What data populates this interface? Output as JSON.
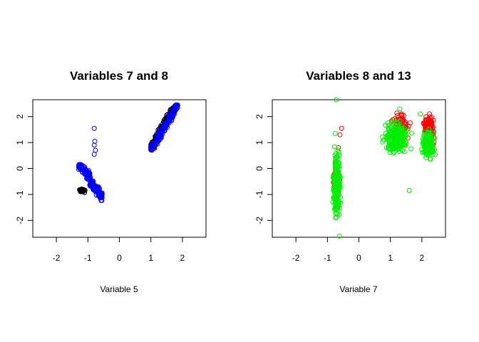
{
  "chart_data": [
    {
      "type": "scatter",
      "title": "Variables 7 and 8",
      "xlabel": "Variable 5",
      "ylabel": "",
      "xlim": [
        -2.75,
        2.75
      ],
      "ylim": [
        -2.65,
        2.65
      ],
      "xticks": [
        "-2",
        "-1",
        "0",
        "1",
        "2"
      ],
      "yticks": [
        "-2",
        "-1",
        "0",
        "1",
        "2"
      ],
      "grid": false,
      "legend": "none",
      "marker": "open-circle",
      "series": [
        {
          "color": "#000000",
          "clusters": [
            {
              "x_range": [
                1.0,
                1.75
              ],
              "y_range": [
                0.8,
                2.35
              ],
              "n": 200,
              "shape": "diag"
            },
            {
              "x_range": [
                -1.3,
                -1.05
              ],
              "y_range": [
                -0.95,
                -0.75
              ],
              "n": 30,
              "shape": "box"
            }
          ],
          "points": []
        },
        {
          "color": "#0000ff",
          "clusters": [
            {
              "x_range": [
                -1.3,
                -0.55
              ],
              "y_range": [
                -1.3,
                0.15
              ],
              "n": 220,
              "shape": "diag-neg"
            },
            {
              "x_range": [
                1.0,
                1.85
              ],
              "y_range": [
                0.7,
                2.45
              ],
              "n": 170,
              "shape": "diag"
            }
          ],
          "points": [
            [
              -0.8,
              1.55
            ],
            [
              -0.78,
              1.05
            ],
            [
              -0.8,
              0.9
            ],
            [
              -0.76,
              0.7
            ],
            [
              -0.8,
              0.55
            ],
            [
              1.8,
              2.45
            ]
          ]
        }
      ]
    },
    {
      "type": "scatter",
      "title": "Variables 8 and 13",
      "xlabel": "Variable 7",
      "ylabel": "",
      "xlim": [
        -2.75,
        2.75
      ],
      "ylim": [
        -2.65,
        2.65
      ],
      "xticks": [
        "-2",
        "-1",
        "0",
        "1",
        "2"
      ],
      "yticks": [
        "-2",
        "-1",
        "0",
        "1",
        "2"
      ],
      "grid": false,
      "legend": "none",
      "marker": "open-circle",
      "series": [
        {
          "color": "#ff0000",
          "clusters": [
            {
              "x_range": [
                2.0,
                2.45
              ],
              "y_range": [
                0.8,
                2.3
              ],
              "n": 130,
              "shape": "box"
            },
            {
              "x_range": [
                1.0,
                1.7
              ],
              "y_range": [
                1.1,
                2.25
              ],
              "n": 80,
              "shape": "box"
            },
            {
              "x_range": [
                -0.85,
                -0.55
              ],
              "y_range": [
                -1.0,
                0.15
              ],
              "n": 35,
              "shape": "box"
            }
          ],
          "points": [
            [
              -0.55,
              1.55
            ],
            [
              -0.6,
              1.3
            ],
            [
              -0.65,
              0.8
            ]
          ]
        },
        {
          "color": "#00ee00",
          "clusters": [
            {
              "x_range": [
                -0.85,
                -0.55
              ],
              "y_range": [
                -2.2,
                1.0
              ],
              "n": 260,
              "shape": "box"
            },
            {
              "x_range": [
                0.7,
                1.7
              ],
              "y_range": [
                0.3,
                2.0
              ],
              "n": 230,
              "shape": "box"
            },
            {
              "x_range": [
                1.95,
                2.45
              ],
              "y_range": [
                0.2,
                1.7
              ],
              "n": 160,
              "shape": "box"
            }
          ],
          "points": [
            [
              -0.72,
              2.65
            ],
            [
              -0.62,
              -2.6
            ],
            [
              -0.75,
              1.35
            ],
            [
              1.6,
              -0.85
            ],
            [
              1.3,
              2.3
            ],
            [
              1.95,
              2.1
            ]
          ]
        }
      ]
    }
  ]
}
